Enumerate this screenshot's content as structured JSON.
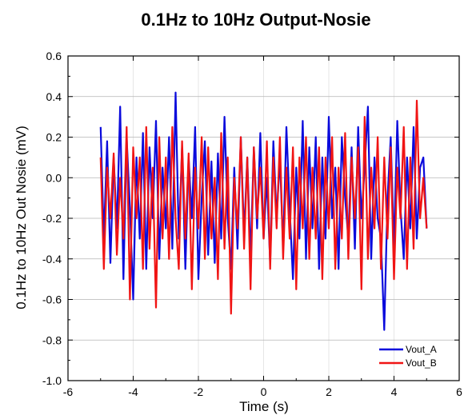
{
  "chart_data": {
    "type": "line",
    "title": "0.1Hz to 10Hz Output-Nosie",
    "xlabel": "Time (s)",
    "ylabel": "0.1Hz to 10Hz Out Nosie (mV)",
    "xlim": [
      -6,
      6
    ],
    "ylim": [
      -1.0,
      0.6
    ],
    "xticks": [
      -6,
      -4,
      -2,
      0,
      2,
      4,
      6
    ],
    "xtick_labels": [
      "-6",
      "-4",
      "-2",
      "0",
      "2",
      "4",
      "6"
    ],
    "yticks": [
      -1.0,
      -0.8,
      -0.6,
      -0.4,
      -0.2,
      0.0,
      0.2,
      0.4,
      0.6
    ],
    "ytick_labels": [
      "-1.0",
      "-0.8",
      "-0.6",
      "-0.4",
      "-0.2",
      "0.0",
      "0.2",
      "0.4",
      "0.6"
    ],
    "grid": true,
    "legend": {
      "placement": "bottom-right"
    },
    "series": [
      {
        "name": "Vout_A",
        "color": "#0a0adc",
        "x": [
          -5.0,
          -4.9,
          -4.8,
          -4.7,
          -4.6,
          -4.5,
          -4.4,
          -4.3,
          -4.2,
          -4.1,
          -4.0,
          -3.9,
          -3.8,
          -3.7,
          -3.6,
          -3.5,
          -3.4,
          -3.3,
          -3.2,
          -3.1,
          -3.0,
          -2.9,
          -2.8,
          -2.7,
          -2.6,
          -2.5,
          -2.4,
          -2.3,
          -2.2,
          -2.1,
          -2.0,
          -1.9,
          -1.8,
          -1.7,
          -1.6,
          -1.5,
          -1.4,
          -1.3,
          -1.2,
          -1.1,
          -1.0,
          -0.9,
          -0.8,
          -0.7,
          -0.6,
          -0.5,
          -0.4,
          -0.3,
          -0.2,
          -0.1,
          0.0,
          0.1,
          0.2,
          0.3,
          0.4,
          0.5,
          0.6,
          0.7,
          0.8,
          0.9,
          1.0,
          1.1,
          1.2,
          1.3,
          1.4,
          1.5,
          1.6,
          1.7,
          1.8,
          1.9,
          2.0,
          2.1,
          2.2,
          2.3,
          2.4,
          2.5,
          2.6,
          2.7,
          2.8,
          2.9,
          3.0,
          3.1,
          3.2,
          3.3,
          3.4,
          3.5,
          3.6,
          3.7,
          3.8,
          3.9,
          4.0,
          4.1,
          4.2,
          4.3,
          4.4,
          4.5,
          4.6,
          4.7,
          4.8,
          4.9,
          5.0
        ],
        "y": [
          0.25,
          -0.3,
          0.18,
          -0.42,
          0.1,
          -0.25,
          0.35,
          -0.5,
          0.2,
          -0.15,
          -0.6,
          0.1,
          -0.3,
          0.22,
          -0.45,
          0.15,
          -0.2,
          0.28,
          -0.4,
          0.05,
          -0.25,
          0.2,
          -0.35,
          0.42,
          -0.3,
          0.15,
          -0.45,
          0.1,
          -0.2,
          0.25,
          -0.5,
          -0.1,
          0.18,
          -0.38,
          0.08,
          -0.42,
          0.12,
          -0.3,
          0.3,
          -0.2,
          -0.45,
          0.05,
          -0.35,
          0.2,
          -0.28,
          0.1,
          -0.4,
          0.15,
          -0.25,
          0.22,
          -0.3,
          0.0,
          -0.42,
          0.18,
          -0.2,
          0.1,
          -0.35,
          0.25,
          -0.15,
          -0.5,
          0.05,
          -0.3,
          0.28,
          -0.4,
          0.15,
          -0.25,
          0.2,
          -0.45,
          0.1,
          -0.3,
          0.3,
          -0.2,
          0.05,
          -0.45,
          0.2,
          -0.1,
          -0.3,
          0.15,
          -0.35,
          0.25,
          -0.2,
          0.05,
          0.35,
          -0.4,
          0.1,
          -0.2,
          -0.3,
          -0.75,
          -0.1,
          0.2,
          -0.35,
          0.28,
          -0.15,
          -0.4,
          0.1,
          -0.25,
          0.25,
          -0.3,
          0.05,
          0.1,
          -0.25
        ]
      },
      {
        "name": "Vout_B",
        "color": "#f01414",
        "x": [
          -5.0,
          -4.9,
          -4.8,
          -4.7,
          -4.6,
          -4.5,
          -4.4,
          -4.3,
          -4.2,
          -4.1,
          -4.0,
          -3.9,
          -3.8,
          -3.7,
          -3.6,
          -3.5,
          -3.4,
          -3.3,
          -3.2,
          -3.1,
          -3.0,
          -2.9,
          -2.8,
          -2.7,
          -2.6,
          -2.5,
          -2.4,
          -2.3,
          -2.2,
          -2.1,
          -2.0,
          -1.9,
          -1.8,
          -1.7,
          -1.6,
          -1.5,
          -1.4,
          -1.3,
          -1.2,
          -1.1,
          -1.0,
          -0.9,
          -0.8,
          -0.7,
          -0.6,
          -0.5,
          -0.4,
          -0.3,
          -0.2,
          -0.1,
          0.0,
          0.1,
          0.2,
          0.3,
          0.4,
          0.5,
          0.6,
          0.7,
          0.8,
          0.9,
          1.0,
          1.1,
          1.2,
          1.3,
          1.4,
          1.5,
          1.6,
          1.7,
          1.8,
          1.9,
          2.0,
          2.1,
          2.2,
          2.3,
          2.4,
          2.5,
          2.6,
          2.7,
          2.8,
          2.9,
          3.0,
          3.1,
          3.2,
          3.3,
          3.4,
          3.5,
          3.6,
          3.7,
          3.8,
          3.9,
          4.0,
          4.1,
          4.2,
          4.3,
          4.4,
          4.5,
          4.6,
          4.7,
          4.8,
          4.9,
          5.0
        ],
        "y": [
          0.1,
          -0.45,
          0.05,
          -0.2,
          0.12,
          -0.38,
          0.0,
          -0.3,
          0.25,
          -0.6,
          0.15,
          -0.2,
          0.1,
          -0.45,
          0.25,
          -0.35,
          0.05,
          -0.64,
          0.2,
          -0.3,
          0.1,
          -0.4,
          0.25,
          -0.2,
          -0.45,
          0.18,
          -0.3,
          0.12,
          -0.55,
          0.05,
          -0.25,
          0.2,
          -0.4,
          0.15,
          -0.3,
          0.0,
          -0.5,
          0.22,
          -0.35,
          0.1,
          -0.67,
          0.0,
          -0.25,
          0.2,
          -0.35,
          0.1,
          -0.55,
          0.15,
          -0.2,
          0.05,
          -0.3,
          0.18,
          -0.45,
          0.1,
          -0.25,
          0.2,
          -0.4,
          0.05,
          -0.3,
          0.15,
          -0.55,
          0.1,
          -0.25,
          0.2,
          -0.4,
          0.05,
          -0.3,
          0.15,
          -0.5,
          0.1,
          -0.25,
          0.2,
          -0.45,
          0.05,
          -0.3,
          0.22,
          -0.4,
          0.1,
          -0.2,
          0.15,
          -0.55,
          0.3,
          -0.4,
          0.05,
          -0.25,
          0.2,
          -0.45,
          0.1,
          -0.3,
          0.15,
          -0.5,
          0.05,
          -0.2,
          0.25,
          -0.45,
          0.1,
          -0.35,
          0.38,
          -0.2,
          0.0,
          -0.25
        ]
      }
    ]
  }
}
